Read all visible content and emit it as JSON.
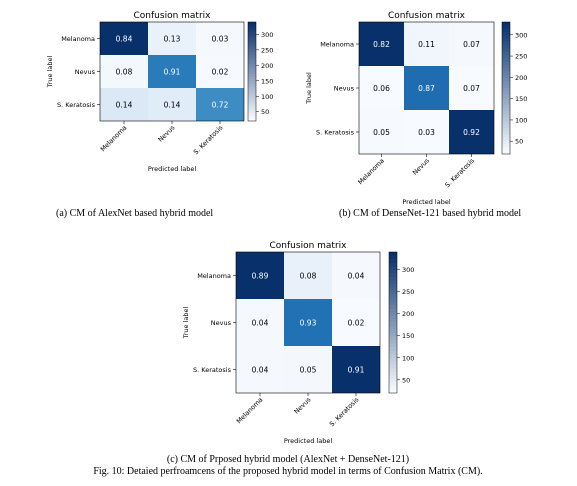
{
  "figure_caption": "Fig. 10: Detaied perfroamcens of the proposed hybrid model in terms of Confusion Matrix (CM).",
  "colorscale": {
    "low": "#f7fbff",
    "high": "#08306b"
  },
  "chart_data": [
    {
      "type": "heatmap",
      "title": "Confusion matrix",
      "caption": "(a)  CM of AlexNet based hybrid model",
      "xlabel": "Predicted label",
      "ylabel": "True label",
      "x_categories": [
        "Melanoma",
        "Nevus",
        "S. Keratosis"
      ],
      "y_categories": [
        "Melanoma",
        "Nevus",
        "S. Keratosis"
      ],
      "values": [
        [
          0.84,
          0.13,
          0.03
        ],
        [
          0.08,
          0.91,
          0.02
        ],
        [
          0.14,
          0.14,
          0.72
        ]
      ],
      "cell_colors": [
        [
          "#08306b",
          "#e9f2fa",
          "#f5f9fd"
        ],
        [
          "#f3f8fc",
          "#2a7bba",
          "#f6fafe"
        ],
        [
          "#dbe9f6",
          "#e0ecf8",
          "#3d8dc4"
        ]
      ],
      "colorbar_ticks": [
        50,
        100,
        150,
        200,
        250,
        300
      ],
      "colorbar_range": [
        20,
        340
      ]
    },
    {
      "type": "heatmap",
      "title": "Confusion matrix",
      "caption": "(b) CM of DenseNet-121 based hybrid model",
      "xlabel": "Predicted label",
      "ylabel": "True label",
      "x_categories": [
        "Melanoma",
        "Nevus",
        "S. Keratosis"
      ],
      "y_categories": [
        "Melanoma",
        "Nevus",
        "S. Keratosis"
      ],
      "values": [
        [
          0.82,
          0.11,
          0.07
        ],
        [
          0.06,
          0.87,
          0.07
        ],
        [
          0.05,
          0.03,
          0.92
        ]
      ],
      "cell_colors": [
        [
          "#08306b",
          "#f1f6fc",
          "#f5f9fd"
        ],
        [
          "#f7fbff",
          "#1f6cb0",
          "#f7fbff"
        ],
        [
          "#f6fafe",
          "#f7fbff",
          "#08306b"
        ]
      ],
      "colorbar_ticks": [
        50,
        100,
        150,
        200,
        250,
        300
      ],
      "colorbar_range": [
        20,
        330
      ]
    },
    {
      "type": "heatmap",
      "title": "Confusion matrix",
      "caption": "(c) CM of Prposed hybrid model (AlexNet + DenseNet-121)",
      "xlabel": "Predicted label",
      "ylabel": "True label",
      "x_categories": [
        "Melanoma",
        "Nevus",
        "S. Keratosis"
      ],
      "y_categories": [
        "Melanoma",
        "Nevus",
        "S. Keratosis"
      ],
      "values": [
        [
          0.89,
          0.08,
          0.04
        ],
        [
          0.04,
          0.93,
          0.02
        ],
        [
          0.04,
          0.05,
          0.91
        ]
      ],
      "cell_colors": [
        [
          "#08306b",
          "#e8f1fa",
          "#f5f9fd"
        ],
        [
          "#f5f9fd",
          "#2171b5",
          "#f7fbff"
        ],
        [
          "#f5f9fd",
          "#f4f8fd",
          "#08306b"
        ]
      ],
      "colorbar_ticks": [
        50,
        100,
        150,
        200,
        250,
        300
      ],
      "colorbar_range": [
        20,
        340
      ]
    }
  ]
}
